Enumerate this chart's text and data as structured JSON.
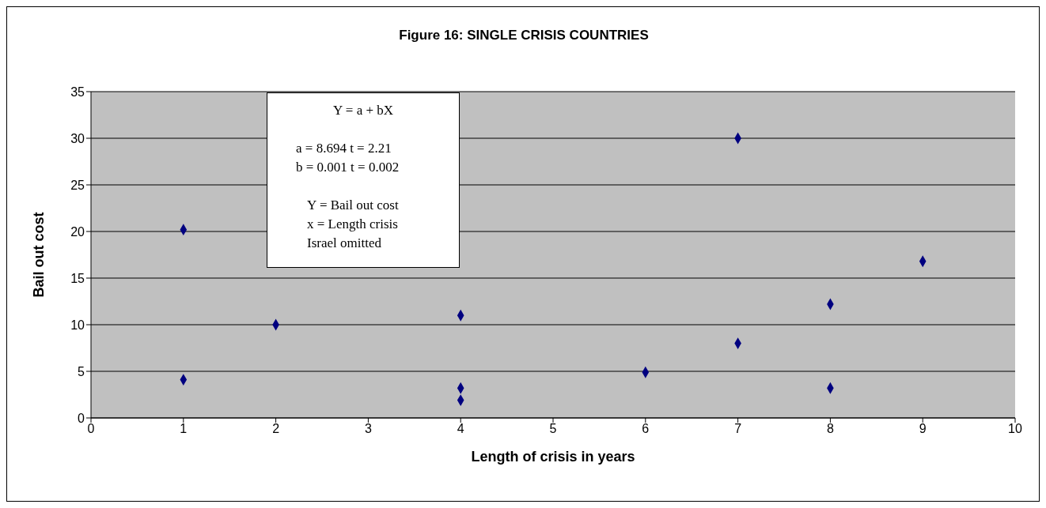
{
  "chart_data": {
    "type": "scatter",
    "title": "Figure 16: SINGLE CRISIS COUNTRIES",
    "xlabel": "Length of crisis in years",
    "ylabel": "Bail out cost",
    "x": [
      1,
      1,
      2,
      4,
      4,
      4,
      6,
      7,
      7,
      8,
      8,
      9
    ],
    "values": [
      20.2,
      4.1,
      10,
      11,
      3.2,
      1.9,
      4.9,
      30,
      8,
      12.2,
      3.2,
      16.8
    ],
    "color": "#000080",
    "marker": "diamond",
    "xlim": [
      0,
      10
    ],
    "xticks": [
      0,
      1,
      2,
      3,
      4,
      5,
      6,
      7,
      8,
      9,
      10
    ],
    "ylim": [
      0,
      35
    ],
    "yticks": [
      0,
      5,
      10,
      15,
      20,
      25,
      30,
      35
    ],
    "grid": "y",
    "legend": false,
    "annotations": [
      "Y = a + bX",
      "a = 8.694   t = 2.21",
      "b = 0.001   t = 0.002",
      "Y = Bail out cost",
      "x = Length crisis",
      "Israel omitted"
    ]
  }
}
